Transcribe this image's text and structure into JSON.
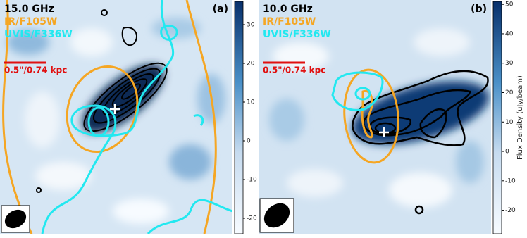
{
  "chart_data": [
    {
      "type": "heatmap",
      "title": "15.0 GHz",
      "label": "(a)",
      "contours": [
        {
          "name": "IR/F105W",
          "color": "#f5a623"
        },
        {
          "name": "UVIS/F336W",
          "color": "#22e8f0"
        }
      ],
      "scale_bar": "0.5\"/0.74 kpc",
      "scale_bar_color": "#e01010",
      "clim": [
        -24,
        36
      ],
      "cticks": [
        -20,
        -10,
        0,
        10,
        20,
        30
      ]
    },
    {
      "type": "heatmap",
      "title": "10.0 GHz",
      "label": "(b)",
      "contours": [
        {
          "name": "IR/F105W",
          "color": "#f5a623"
        },
        {
          "name": "UVIS/F336W",
          "color": "#22e8f0"
        }
      ],
      "scale_bar": "0.5\"/0.74 kpc",
      "scale_bar_color": "#e01010",
      "clim": [
        -28,
        51
      ],
      "cticks": [
        -20,
        -10,
        0,
        10,
        20,
        30,
        40,
        50
      ],
      "colorbar_label": "Flux Density (uJy/beam)"
    }
  ]
}
